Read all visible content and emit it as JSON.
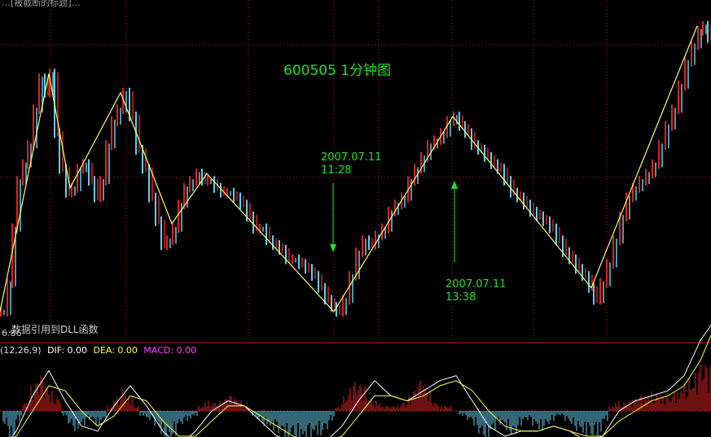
{
  "window": {
    "title": "…[被截断的标题]…"
  },
  "colors": {
    "background": "#000000",
    "up_candle": "#dd2222",
    "down_candle": "#66ccee",
    "zigzag": "#ffff66",
    "grid": "#aa2222",
    "annotation": "#22e022",
    "dif": "#ffffff",
    "dea": "#ffff44",
    "macd": "#ff44ff"
  },
  "price_panel": {
    "title": "600505 1分钟图",
    "low_price_label": "6.86",
    "note": "…数据引用到DLL函数"
  },
  "annotations": [
    {
      "date": "2007.07.11",
      "time": "11:28",
      "arrow": "down"
    },
    {
      "date": "2007.07.11",
      "time": "13:38",
      "arrow": "up"
    }
  ],
  "macd_panel": {
    "params": "(12,26,9)",
    "dif_label": "DIF: 0.00",
    "dea_label": "DEA: 0.00",
    "macd_label": "MACD: 0.00"
  },
  "chart_data": [
    {
      "type": "line",
      "title": "600505 1分钟图",
      "x": [
        0,
        8,
        14,
        20,
        27,
        33,
        40,
        47,
        54,
        60,
        66,
        72,
        80,
        87,
        94,
        101,
        108,
        115,
        122,
        129,
        136,
        143,
        150,
        158,
        166,
        174,
        182,
        190,
        197,
        204,
        211,
        218,
        225,
        232,
        240,
        247,
        254,
        262,
        270,
        278,
        286,
        294,
        302,
        310,
        318,
        326,
        334,
        342,
        350,
        358,
        366,
        374,
        382,
        390,
        398,
        406,
        412,
        420,
        428,
        436,
        444,
        452,
        460,
        468,
        476,
        484,
        492,
        500,
        508,
        516,
        524,
        532,
        540,
        548,
        556,
        563,
        570,
        578,
        586,
        594,
        602,
        610,
        618,
        626,
        634,
        642,
        650,
        658,
        666,
        674,
        682,
        690,
        698,
        706,
        714,
        722,
        728,
        736,
        744,
        752,
        760,
        768,
        776,
        784,
        792,
        800,
        808,
        816,
        824,
        832,
        840,
        848,
        856,
        862,
        868
      ],
      "y": [
        0.0,
        0.12,
        0.35,
        0.55,
        0.62,
        0.7,
        0.85,
        0.98,
        0.92,
        1.0,
        0.75,
        0.6,
        0.5,
        0.52,
        0.6,
        0.62,
        0.55,
        0.48,
        0.55,
        0.7,
        0.8,
        0.85,
        0.92,
        0.82,
        0.68,
        0.6,
        0.48,
        0.38,
        0.28,
        0.3,
        0.35,
        0.45,
        0.52,
        0.55,
        0.58,
        0.55,
        0.55,
        0.52,
        0.5,
        0.5,
        0.48,
        0.45,
        0.4,
        0.35,
        0.35,
        0.3,
        0.28,
        0.26,
        0.22,
        0.22,
        0.2,
        0.18,
        0.15,
        0.1,
        0.05,
        0.02,
        0.0,
        0.05,
        0.15,
        0.25,
        0.3,
        0.28,
        0.32,
        0.35,
        0.42,
        0.45,
        0.48,
        0.55,
        0.6,
        0.65,
        0.7,
        0.72,
        0.75,
        0.8,
        0.82,
        0.78,
        0.75,
        0.7,
        0.68,
        0.65,
        0.62,
        0.6,
        0.55,
        0.5,
        0.48,
        0.45,
        0.42,
        0.4,
        0.38,
        0.35,
        0.3,
        0.25,
        0.22,
        0.18,
        0.15,
        0.1,
        0.05,
        0.12,
        0.2,
        0.3,
        0.4,
        0.48,
        0.52,
        0.55,
        0.58,
        0.62,
        0.7,
        0.78,
        0.85,
        0.95,
        1.05,
        1.12,
        1.18,
        1.2,
        1.15
      ]
    },
    {
      "type": "line",
      "x": [
        0,
        60,
        86,
        148,
        211,
        254,
        410,
        556,
        726,
        856
      ],
      "y": [
        0.0,
        1.0,
        0.52,
        0.92,
        0.37,
        0.58,
        0.0,
        0.82,
        0.1,
        1.2
      ]
    },
    {
      "type": "bar",
      "title": "MACD",
      "x": [
        4,
        12,
        20,
        28,
        36,
        44,
        52,
        60,
        68,
        76,
        84,
        92,
        100,
        108,
        116,
        124,
        132,
        140,
        148,
        156,
        164,
        172,
        180,
        188,
        196,
        204,
        212,
        220,
        228,
        236,
        244,
        252,
        260,
        268,
        276,
        284,
        292,
        300,
        308,
        316,
        324,
        332,
        340,
        348,
        356,
        364,
        372,
        380,
        388,
        396,
        404,
        412,
        420,
        428,
        436,
        444,
        452,
        460,
        468,
        476,
        484,
        492,
        500,
        508,
        516,
        524,
        532,
        540,
        548,
        556,
        564,
        572,
        580,
        588,
        596,
        604,
        612,
        620,
        628,
        636,
        644,
        652,
        660,
        668,
        676,
        684,
        692,
        700,
        708,
        716,
        724,
        732,
        740,
        748,
        756,
        764,
        772,
        780,
        788,
        796,
        804,
        812,
        820,
        828,
        836,
        844,
        852,
        860,
        868
      ],
      "values": [
        -0.3,
        -0.6,
        -0.2,
        0.2,
        0.5,
        0.7,
        0.6,
        0.4,
        0.3,
        -0.1,
        -0.3,
        -0.4,
        -0.3,
        -0.2,
        -0.3,
        -0.2,
        0.1,
        0.3,
        0.5,
        0.3,
        0.1,
        -0.1,
        -0.2,
        -0.3,
        -0.5,
        -0.6,
        -0.5,
        -0.3,
        -0.2,
        -0.1,
        0.1,
        0.2,
        0.2,
        0.2,
        0.3,
        0.3,
        0.2,
        0.1,
        -0.1,
        -0.2,
        -0.3,
        -0.4,
        -0.5,
        -0.6,
        -0.5,
        -0.6,
        -0.7,
        -0.6,
        -0.5,
        -0.4,
        -0.2,
        0.1,
        0.3,
        0.5,
        0.6,
        0.5,
        0.3,
        0.2,
        0.1,
        0.1,
        0.1,
        0.2,
        0.3,
        0.5,
        0.6,
        0.4,
        0.2,
        0.1,
        0.1,
        0.0,
        -0.1,
        -0.2,
        -0.3,
        -0.5,
        -0.6,
        -0.4,
        -0.3,
        -0.4,
        -0.5,
        -0.3,
        -0.2,
        -0.3,
        -0.4,
        -0.3,
        -0.2,
        -0.1,
        -0.2,
        -0.3,
        -0.4,
        -0.5,
        -0.6,
        -0.5,
        -0.2,
        0.1,
        0.2,
        0.2,
        0.2,
        0.3,
        0.3,
        0.4,
        0.4,
        0.3,
        0.3,
        0.4,
        0.6,
        0.7,
        0.8,
        1.0,
        0.9
      ]
    },
    {
      "type": "line",
      "x": [
        0,
        20,
        40,
        60,
        80,
        100,
        120,
        140,
        160,
        180,
        200,
        220,
        240,
        260,
        280,
        300,
        320,
        340,
        360,
        380,
        400,
        420,
        440,
        460,
        480,
        500,
        520,
        540,
        560,
        580,
        600,
        620,
        640,
        660,
        680,
        700,
        720,
        740,
        760,
        780,
        800,
        820,
        840,
        860,
        873
      ],
      "series": [
        {
          "values": [
            -0.8,
            -0.4,
            0.3,
            0.8,
            0.2,
            -0.3,
            -0.4,
            0.1,
            0.5,
            0.1,
            -0.4,
            -0.7,
            -0.4,
            0.0,
            0.2,
            0.1,
            -0.2,
            -0.5,
            -0.6,
            -0.7,
            -0.6,
            -0.3,
            0.2,
            0.6,
            0.3,
            0.2,
            0.4,
            0.6,
            0.7,
            0.2,
            -0.3,
            -0.5,
            -0.4,
            -0.4,
            -0.3,
            -0.4,
            -0.6,
            -0.5,
            0.0,
            0.2,
            0.3,
            0.4,
            0.7,
            1.4,
            1.7
          ]
        },
        {
          "values": [
            -0.6,
            -0.5,
            0.0,
            0.5,
            0.4,
            0.0,
            -0.3,
            -0.1,
            0.3,
            0.2,
            -0.2,
            -0.5,
            -0.5,
            -0.2,
            0.1,
            0.1,
            -0.1,
            -0.3,
            -0.5,
            -0.6,
            -0.6,
            -0.5,
            -0.1,
            0.3,
            0.3,
            0.2,
            0.3,
            0.5,
            0.6,
            0.4,
            0.0,
            -0.3,
            -0.4,
            -0.4,
            -0.3,
            -0.4,
            -0.5,
            -0.5,
            -0.2,
            0.0,
            0.2,
            0.3,
            0.5,
            1.0,
            1.5
          ]
        }
      ]
    }
  ]
}
